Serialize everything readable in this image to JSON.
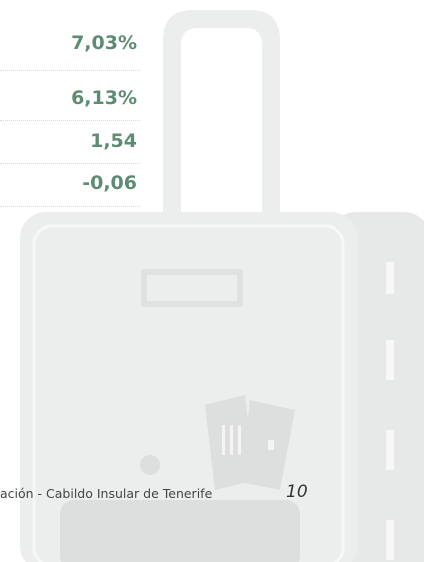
{
  "rows": [
    "7,03%",
    "6,13%",
    "1,54",
    "-0,06"
  ],
  "footer": {
    "text": "ación - Cabildo Insular de Tenerife",
    "page": "10"
  }
}
